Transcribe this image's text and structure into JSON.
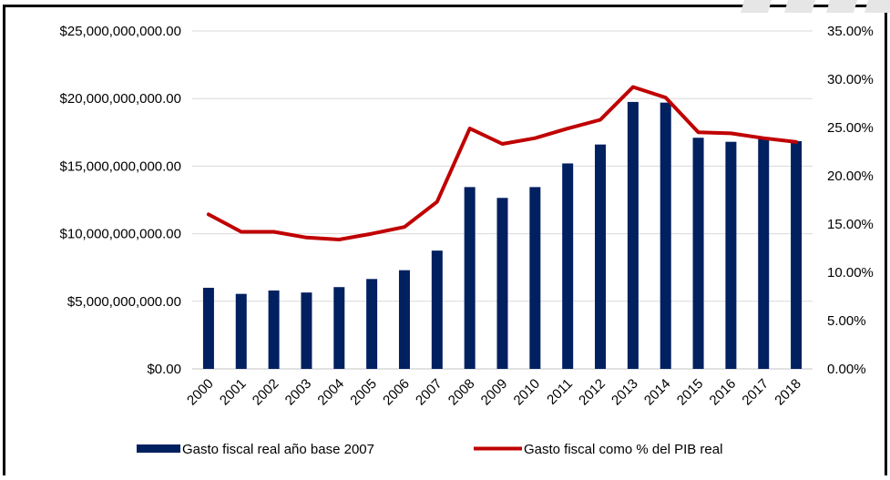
{
  "chart_data": {
    "type": "bar+line",
    "categories": [
      "2000",
      "2001",
      "2002",
      "2003",
      "2004",
      "2005",
      "2006",
      "2007",
      "2008",
      "2009",
      "2010",
      "2011",
      "2012",
      "2013",
      "2014",
      "2015",
      "2016",
      "2017",
      "2018"
    ],
    "series": [
      {
        "name": "Gasto fiscal real año base 2007",
        "type": "bar",
        "axis": "left",
        "color": "#002060",
        "values": [
          6000000000,
          5550000000,
          5800000000,
          5650000000,
          6050000000,
          6650000000,
          7300000000,
          8750000000,
          13450000000,
          12650000000,
          13450000000,
          15200000000,
          16600000000,
          19750000000,
          19700000000,
          17100000000,
          16800000000,
          17000000000,
          16850000000
        ]
      },
      {
        "name": "Gasto fiscal  como % del PIB real",
        "type": "line",
        "axis": "right",
        "color": "#C00000",
        "values": [
          16.0,
          14.2,
          14.2,
          13.6,
          13.4,
          14.0,
          14.7,
          17.3,
          24.9,
          23.3,
          23.9,
          24.9,
          25.8,
          29.2,
          28.1,
          24.5,
          24.4,
          23.9,
          23.5
        ]
      }
    ],
    "y_left": {
      "lim": [
        0,
        25000000000
      ],
      "ticks": [
        "$0.00",
        "$5,000,000,000.00",
        "$10,000,000,000.00",
        "$15,000,000,000.00",
        "$20,000,000,000.00",
        "$25,000,000,000.00"
      ]
    },
    "y_right": {
      "lim": [
        0,
        35
      ],
      "ticks": [
        "0.00%",
        "5.00%",
        "10.00%",
        "15.00%",
        "20.00%",
        "25.00%",
        "30.00%",
        "35.00%"
      ]
    },
    "grid": "horizontal",
    "legend": "bottom"
  },
  "colors": {
    "bar": "#002060",
    "line": "#C00000",
    "grid": "#D9D9D9",
    "frame": "#000000",
    "logo": "#E0E0E0"
  }
}
